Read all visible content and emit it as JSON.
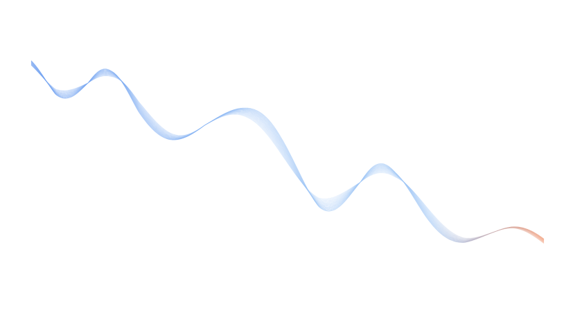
{
  "graphic": {
    "kind": "abstract-wave-lines",
    "colors": {
      "background": "#ffffff",
      "start": "#6e9ff0",
      "middle": "#9cc4f5",
      "end": "#f2a07e"
    }
  }
}
